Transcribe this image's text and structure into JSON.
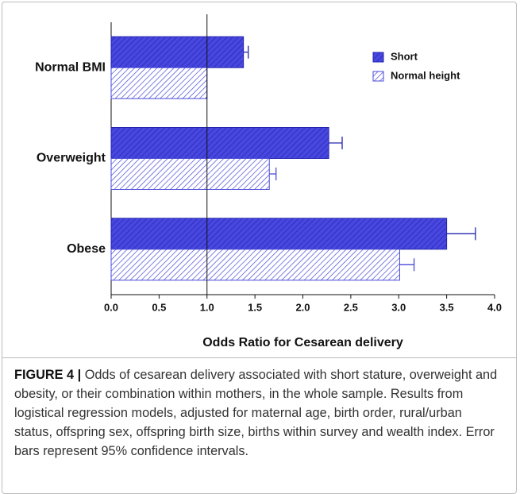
{
  "chart_data": {
    "type": "hbar",
    "categories": [
      "Normal BMI",
      "Overweight",
      "Obese"
    ],
    "series": [
      {
        "name": "Short",
        "color": "#2424b0",
        "background": "#4848e0",
        "values": [
          1.38,
          2.27,
          3.5
        ],
        "errors": [
          0.05,
          0.14,
          0.3
        ]
      },
      {
        "name": "Normal height",
        "color": "#4a4ad8",
        "background": "#ffffff",
        "values": [
          1.0,
          1.65,
          3.01
        ],
        "errors": [
          null,
          0.07,
          0.15
        ]
      }
    ],
    "xlabel": "Odds Ratio for Cesarean delivery",
    "xlim": [
      0,
      4
    ],
    "xticks": [
      {
        "value": 0,
        "label": "0.0"
      },
      {
        "value": 0.5,
        "label": "0.5"
      },
      {
        "value": 1,
        "label": "1.0"
      },
      {
        "value": 1.5,
        "label": "1.5"
      },
      {
        "value": 2,
        "label": "2.0"
      },
      {
        "value": 2.5,
        "label": "2.5"
      },
      {
        "value": 3,
        "label": "3.0"
      },
      {
        "value": 3.5,
        "label": "3.5"
      },
      {
        "value": 4,
        "label": "4.0"
      }
    ],
    "reference_line": 1,
    "legend": "top-right"
  },
  "caption": {
    "label": "FIGURE 4 |",
    "text": "Odds of cesarean delivery associated with short stature, overweight and obesity, or their combination within mothers, in the whole sample. Results from logistical regression models, adjusted for maternal age, birth order, rural/urban status, offspring sex, offspring birth size, births within survey and wealth index. Error bars represent 95% confidence intervals."
  }
}
